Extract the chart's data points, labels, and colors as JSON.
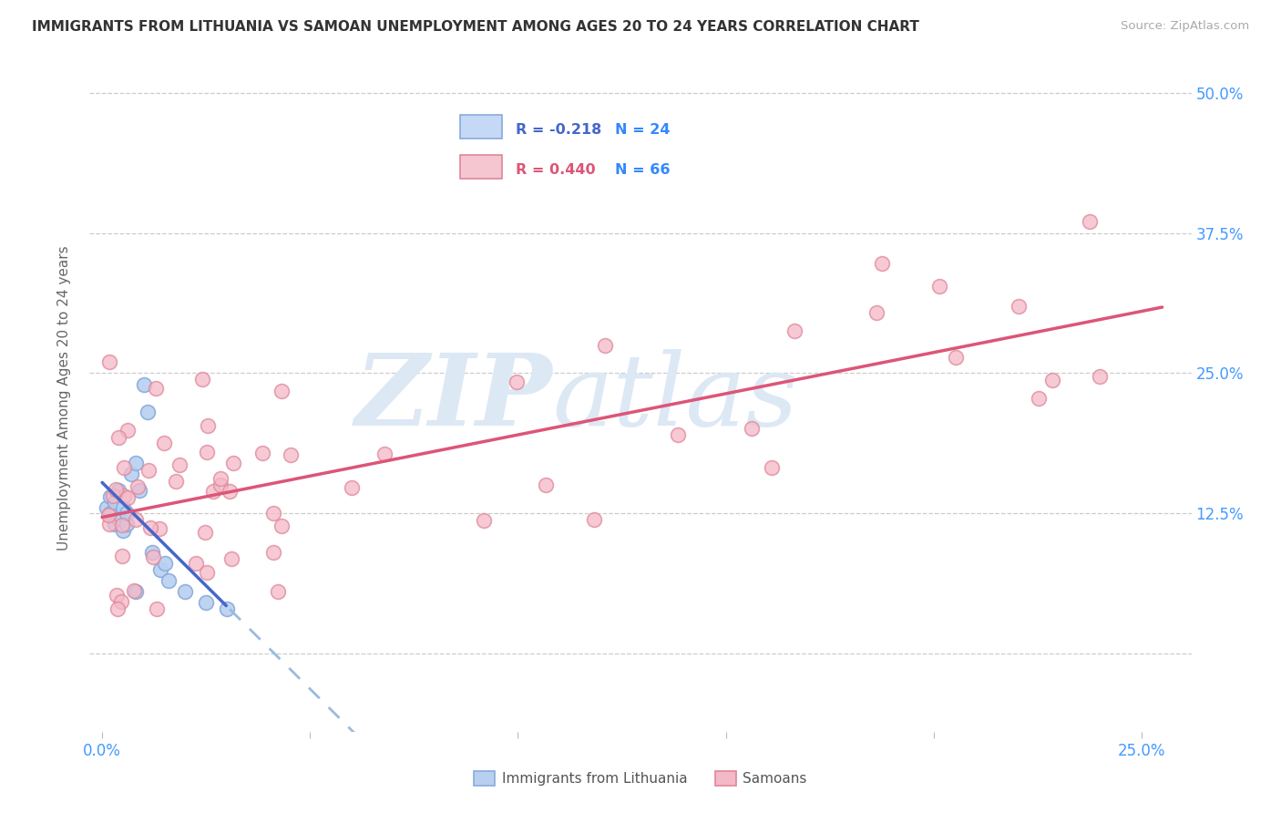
{
  "title": "IMMIGRANTS FROM LITHUANIA VS SAMOAN UNEMPLOYMENT AMONG AGES 20 TO 24 YEARS CORRELATION CHART",
  "source": "Source: ZipAtlas.com",
  "ylabel": "Unemployment Among Ages 20 to 24 years",
  "xlim": [
    -0.003,
    0.262
  ],
  "ylim": [
    -0.07,
    0.525
  ],
  "title_color": "#333333",
  "source_color": "#aaaaaa",
  "axis_label_color": "#666666",
  "tick_color": "#4499ff",
  "grid_color": "#cccccc",
  "background_color": "#ffffff",
  "watermark_zip": "ZIP",
  "watermark_atlas": "atlas",
  "watermark_color": "#dde8f5",
  "legend_R1": "R = -0.218",
  "legend_N1": "N = 24",
  "legend_R2": "R = 0.440",
  "legend_N2": "N = 66",
  "dot_color1": "#b8d0f0",
  "dot_color2": "#f5b8c8",
  "dot_edge1": "#88aadd",
  "dot_edge2": "#dd8899",
  "line_color1": "#4466cc",
  "line_color2": "#dd5577",
  "line_color1_dashed": "#99bbdd",
  "legend_fill1": "#c5d8f5",
  "legend_fill2": "#f5c5d0",
  "legend_edge1": "#88aadd",
  "legend_edge2": "#dd8899",
  "R1_color": "#4466cc",
  "R2_color": "#dd5577",
  "N_color": "#3388ff"
}
